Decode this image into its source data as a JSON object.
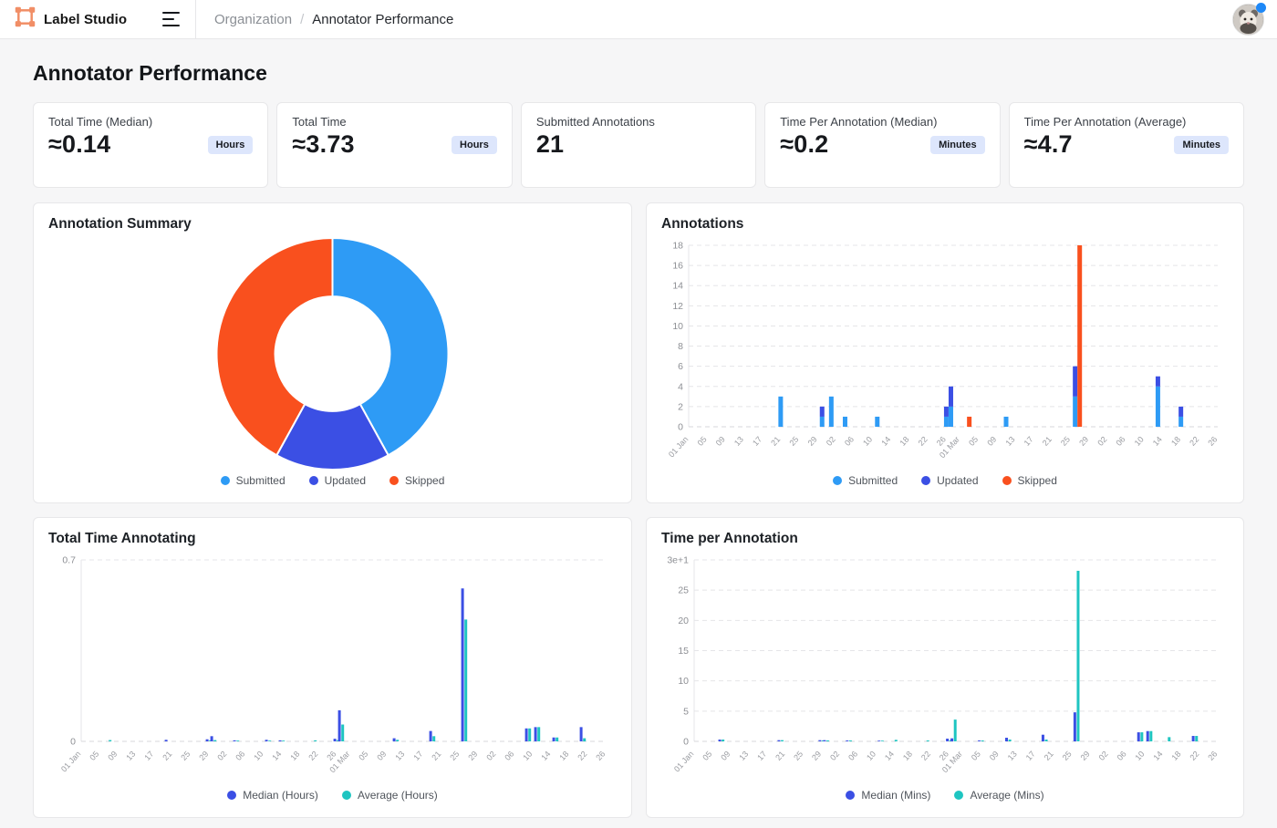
{
  "header": {
    "brand": "Label Studio",
    "breadcrumb": {
      "parent": "Organization",
      "separator": "/",
      "current": "Annotator Performance"
    }
  },
  "page": {
    "title": "Annotator Performance"
  },
  "stats": [
    {
      "label": "Total Time (Median)",
      "value": "≈0.14",
      "unit": "Hours"
    },
    {
      "label": "Total Time",
      "value": "≈3.73",
      "unit": "Hours"
    },
    {
      "label": "Submitted Annotations",
      "value": "21",
      "unit": null
    },
    {
      "label": "Time Per Annotation (Median)",
      "value": "≈0.2",
      "unit": "Minutes"
    },
    {
      "label": "Time Per Annotation (Average)",
      "value": "≈4.7",
      "unit": "Minutes"
    }
  ],
  "colors": {
    "submitted": "#2E9BF5",
    "updated": "#3B4FE4",
    "skipped": "#F9501E",
    "median": "#3B4FE4",
    "average": "#1EC5C1",
    "accent_orange": "#F18E66",
    "notification_blue": "#1E88F7"
  },
  "chart_data": [
    {
      "type": "pie",
      "title": "Annotation Summary",
      "donut": true,
      "legend_position": "bottom",
      "labels": [
        "Submitted",
        "Updated",
        "Skipped"
      ],
      "values": [
        21,
        8,
        21
      ],
      "colors": [
        "#2E9BF5",
        "#3B4FE4",
        "#F9501E"
      ]
    },
    {
      "type": "bar",
      "title": "Annotations",
      "stacked": true,
      "legend_position": "bottom",
      "ylim": [
        0,
        18
      ],
      "yticks": [
        {
          "v": 0,
          "label": "0"
        },
        {
          "v": 2,
          "label": "2"
        },
        {
          "v": 4,
          "label": "4"
        },
        {
          "v": 6,
          "label": "6"
        },
        {
          "v": 8,
          "label": "8"
        },
        {
          "v": 10,
          "label": "10"
        },
        {
          "v": 12,
          "label": "12"
        },
        {
          "v": 14,
          "label": "14"
        },
        {
          "v": 16,
          "label": "16"
        },
        {
          "v": 18,
          "label": "18"
        }
      ],
      "x_day_range": [
        0,
        115
      ],
      "xticks": [
        {
          "day": 0,
          "label": "01 Jan"
        },
        {
          "day": 4,
          "label": "05"
        },
        {
          "day": 8,
          "label": "09"
        },
        {
          "day": 12,
          "label": "13"
        },
        {
          "day": 16,
          "label": "17"
        },
        {
          "day": 20,
          "label": "21"
        },
        {
          "day": 24,
          "label": "25"
        },
        {
          "day": 28,
          "label": "29"
        },
        {
          "day": 32,
          "label": "02"
        },
        {
          "day": 36,
          "label": "06"
        },
        {
          "day": 40,
          "label": "10"
        },
        {
          "day": 44,
          "label": "14"
        },
        {
          "day": 48,
          "label": "18"
        },
        {
          "day": 52,
          "label": "22"
        },
        {
          "day": 56,
          "label": "26"
        },
        {
          "day": 59,
          "label": "01 Mar"
        },
        {
          "day": 63,
          "label": "05"
        },
        {
          "day": 67,
          "label": "09"
        },
        {
          "day": 71,
          "label": "13"
        },
        {
          "day": 75,
          "label": "17"
        },
        {
          "day": 79,
          "label": "21"
        },
        {
          "day": 83,
          "label": "25"
        },
        {
          "day": 87,
          "label": "29"
        },
        {
          "day": 91,
          "label": "02"
        },
        {
          "day": 95,
          "label": "06"
        },
        {
          "day": 99,
          "label": "10"
        },
        {
          "day": 103,
          "label": "14"
        },
        {
          "day": 107,
          "label": "18"
        },
        {
          "day": 111,
          "label": "22"
        },
        {
          "day": 115,
          "label": "26"
        }
      ],
      "series": [
        {
          "name": "Submitted",
          "key": "submitted",
          "color": "#2E9BF5"
        },
        {
          "name": "Updated",
          "key": "updated",
          "color": "#3B4FE4"
        },
        {
          "name": "Skipped",
          "key": "skipped",
          "color": "#F9501E"
        }
      ],
      "bars": [
        {
          "date": "21 Jan",
          "day": 20,
          "submitted": 3,
          "updated": 0,
          "skipped": 0
        },
        {
          "date": "30 Jan",
          "day": 29,
          "submitted": 1,
          "updated": 1,
          "skipped": 0
        },
        {
          "date": "01 Feb",
          "day": 31,
          "submitted": 3,
          "updated": 0,
          "skipped": 0
        },
        {
          "date": "04 Feb",
          "day": 34,
          "submitted": 1,
          "updated": 0,
          "skipped": 0
        },
        {
          "date": "11 Feb",
          "day": 41,
          "submitted": 1,
          "updated": 0,
          "skipped": 0
        },
        {
          "date": "26 Feb",
          "day": 56,
          "submitted": 1,
          "updated": 1,
          "skipped": 0
        },
        {
          "date": "27 Feb",
          "day": 57,
          "submitted": 2,
          "updated": 2,
          "skipped": 0
        },
        {
          "date": "03 Mar",
          "day": 61,
          "submitted": 0,
          "updated": 0,
          "skipped": 1
        },
        {
          "date": "11 Mar",
          "day": 69,
          "submitted": 1,
          "updated": 0,
          "skipped": 0
        },
        {
          "date": "26 Mar",
          "day": 84,
          "submitted": 3,
          "updated": 3,
          "skipped": 0
        },
        {
          "date": "27 Mar",
          "day": 85,
          "submitted": 0,
          "updated": 0,
          "skipped": 18
        },
        {
          "date": "13 Apr",
          "day": 102,
          "submitted": 4,
          "updated": 1,
          "skipped": 0
        },
        {
          "date": "18 Apr",
          "day": 107,
          "submitted": 1,
          "updated": 1,
          "skipped": 0
        }
      ]
    },
    {
      "type": "bar",
      "title": "Total Time Annotating",
      "grouped": true,
      "legend_position": "bottom",
      "ylim": [
        0,
        0.7
      ],
      "yticks": [
        {
          "v": 0.7,
          "label": "0.7"
        },
        {
          "v": 0,
          "label": "0"
        }
      ],
      "x_day_range": [
        0,
        115
      ],
      "xticks": [
        {
          "day": 0,
          "label": "01 Jan"
        },
        {
          "day": 4,
          "label": "05"
        },
        {
          "day": 8,
          "label": "09"
        },
        {
          "day": 12,
          "label": "13"
        },
        {
          "day": 16,
          "label": "17"
        },
        {
          "day": 20,
          "label": "21"
        },
        {
          "day": 24,
          "label": "25"
        },
        {
          "day": 28,
          "label": "29"
        },
        {
          "day": 32,
          "label": "02"
        },
        {
          "day": 36,
          "label": "06"
        },
        {
          "day": 40,
          "label": "10"
        },
        {
          "day": 44,
          "label": "14"
        },
        {
          "day": 48,
          "label": "18"
        },
        {
          "day": 52,
          "label": "22"
        },
        {
          "day": 56,
          "label": "26"
        },
        {
          "day": 59,
          "label": "01 Mar"
        },
        {
          "day": 63,
          "label": "05"
        },
        {
          "day": 67,
          "label": "09"
        },
        {
          "day": 71,
          "label": "13"
        },
        {
          "day": 75,
          "label": "17"
        },
        {
          "day": 79,
          "label": "21"
        },
        {
          "day": 83,
          "label": "25"
        },
        {
          "day": 87,
          "label": "29"
        },
        {
          "day": 91,
          "label": "02"
        },
        {
          "day": 95,
          "label": "06"
        },
        {
          "day": 99,
          "label": "10"
        },
        {
          "day": 103,
          "label": "14"
        },
        {
          "day": 107,
          "label": "18"
        },
        {
          "day": 111,
          "label": "22"
        },
        {
          "day": 115,
          "label": "26"
        }
      ],
      "series": [
        {
          "name": "Median (Hours)",
          "key": "median",
          "color": "#3B4FE4"
        },
        {
          "name": "Average (Hours)",
          "key": "average",
          "color": "#1EC5C1"
        }
      ],
      "bars": [
        {
          "date": "07 Jan",
          "day": 6,
          "median": 0,
          "average": 0.005
        },
        {
          "date": "20 Jan",
          "day": 19,
          "median": 0.006,
          "average": 0
        },
        {
          "date": "29 Jan",
          "day": 28,
          "median": 0.008,
          "average": 0.004
        },
        {
          "date": "30 Jan",
          "day": 29,
          "median": 0.02,
          "average": 0.005
        },
        {
          "date": "04 Feb",
          "day": 34,
          "median": 0.004,
          "average": 0.003
        },
        {
          "date": "11 Feb",
          "day": 41,
          "median": 0.006,
          "average": 0.003
        },
        {
          "date": "14 Feb",
          "day": 44,
          "median": 0.004,
          "average": 0.003
        },
        {
          "date": "22 Feb",
          "day": 51,
          "median": 0,
          "average": 0.004
        },
        {
          "date": "26 Feb",
          "day": 56,
          "median": 0.01,
          "average": 0.005
        },
        {
          "date": "27 Feb",
          "day": 57,
          "median": 0.12,
          "average": 0.065
        },
        {
          "date": "11 Mar",
          "day": 69,
          "median": 0.012,
          "average": 0.006
        },
        {
          "date": "19 Mar",
          "day": 77,
          "median": 0.04,
          "average": 0.02
        },
        {
          "date": "26 Mar",
          "day": 84,
          "median": 0.59,
          "average": 0.47
        },
        {
          "date": "08 Apr",
          "day": 98,
          "median": 0.05,
          "average": 0.05
        },
        {
          "date": "10 Apr",
          "day": 100,
          "median": 0.055,
          "average": 0.055
        },
        {
          "date": "14 Apr",
          "day": 104,
          "median": 0.015,
          "average": 0.015
        },
        {
          "date": "20 Apr",
          "day": 110,
          "median": 0.055,
          "average": 0.012
        }
      ]
    },
    {
      "type": "bar",
      "title": "Time per Annotation",
      "grouped": true,
      "legend_position": "bottom",
      "ylim": [
        0,
        30
      ],
      "yticks": [
        {
          "v": 30,
          "label": "3e+1"
        },
        {
          "v": 25,
          "label": "25"
        },
        {
          "v": 20,
          "label": "20"
        },
        {
          "v": 15,
          "label": "15"
        },
        {
          "v": 10,
          "label": "10"
        },
        {
          "v": 5,
          "label": "5"
        },
        {
          "v": 0,
          "label": "0"
        }
      ],
      "x_day_range": [
        0,
        115
      ],
      "xticks": [
        {
          "day": 0,
          "label": "01 Jan"
        },
        {
          "day": 4,
          "label": "05"
        },
        {
          "day": 8,
          "label": "09"
        },
        {
          "day": 12,
          "label": "13"
        },
        {
          "day": 16,
          "label": "17"
        },
        {
          "day": 20,
          "label": "21"
        },
        {
          "day": 24,
          "label": "25"
        },
        {
          "day": 28,
          "label": "29"
        },
        {
          "day": 32,
          "label": "02"
        },
        {
          "day": 36,
          "label": "06"
        },
        {
          "day": 40,
          "label": "10"
        },
        {
          "day": 44,
          "label": "14"
        },
        {
          "day": 48,
          "label": "18"
        },
        {
          "day": 52,
          "label": "22"
        },
        {
          "day": 56,
          "label": "26"
        },
        {
          "day": 59,
          "label": "01 Mar"
        },
        {
          "day": 63,
          "label": "05"
        },
        {
          "day": 67,
          "label": "09"
        },
        {
          "day": 71,
          "label": "13"
        },
        {
          "day": 75,
          "label": "17"
        },
        {
          "day": 79,
          "label": "21"
        },
        {
          "day": 83,
          "label": "25"
        },
        {
          "day": 87,
          "label": "29"
        },
        {
          "day": 91,
          "label": "02"
        },
        {
          "day": 95,
          "label": "06"
        },
        {
          "day": 99,
          "label": "10"
        },
        {
          "day": 103,
          "label": "14"
        },
        {
          "day": 107,
          "label": "18"
        },
        {
          "day": 111,
          "label": "22"
        },
        {
          "day": 115,
          "label": "26"
        }
      ],
      "series": [
        {
          "name": "Median (Mins)",
          "key": "median",
          "color": "#3B4FE4"
        },
        {
          "name": "Average (Mins)",
          "key": "average",
          "color": "#1EC5C1"
        }
      ],
      "bars": [
        {
          "date": "07 Jan",
          "day": 6,
          "median": 0.3,
          "average": 0.3
        },
        {
          "date": "20 Jan",
          "day": 19,
          "median": 0.2,
          "average": 0.2
        },
        {
          "date": "29 Jan",
          "day": 28,
          "median": 0.2,
          "average": 0.15
        },
        {
          "date": "30 Jan",
          "day": 29,
          "median": 0.2,
          "average": 0.15
        },
        {
          "date": "04 Feb",
          "day": 34,
          "median": 0.15,
          "average": 0.15
        },
        {
          "date": "11 Feb",
          "day": 41,
          "median": 0.1,
          "average": 0.1
        },
        {
          "date": "14 Feb",
          "day": 44,
          "median": 0,
          "average": 0.25
        },
        {
          "date": "22 Feb",
          "day": 51,
          "median": 0,
          "average": 0.15
        },
        {
          "date": "26 Feb",
          "day": 56,
          "median": 0.45,
          "average": 0.2
        },
        {
          "date": "27 Feb",
          "day": 57,
          "median": 0.5,
          "average": 3.6
        },
        {
          "date": "05 Mar",
          "day": 63,
          "median": 0.15,
          "average": 0.15
        },
        {
          "date": "11 Mar",
          "day": 69,
          "median": 0.6,
          "average": 0.3
        },
        {
          "date": "19 Mar",
          "day": 77,
          "median": 1.1,
          "average": 0.3
        },
        {
          "date": "26 Mar",
          "day": 84,
          "median": 4.8,
          "average": 28.2
        },
        {
          "date": "08 Apr",
          "day": 98,
          "median": 1.5,
          "average": 1.5
        },
        {
          "date": "10 Apr",
          "day": 100,
          "median": 1.7,
          "average": 1.7
        },
        {
          "date": "14 Apr",
          "day": 104,
          "median": 0,
          "average": 0.7
        },
        {
          "date": "20 Apr",
          "day": 110,
          "median": 0.9,
          "average": 0.9
        }
      ]
    }
  ]
}
